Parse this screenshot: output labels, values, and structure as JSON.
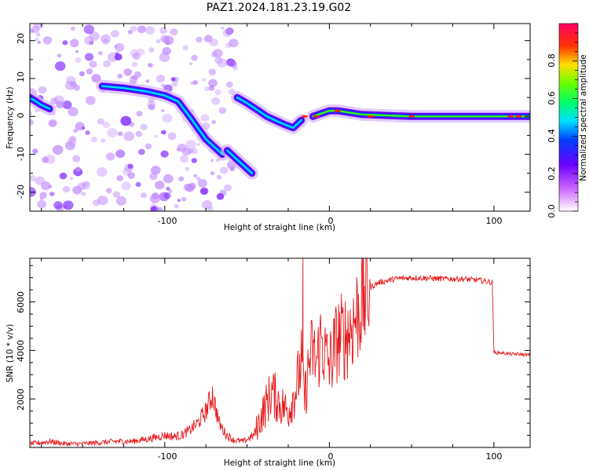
{
  "title": "PAZ1.2024.181.23.19.G02",
  "chart_data": [
    {
      "type": "heatmap",
      "xlabel": "Height of straight line (km)",
      "ylabel": "Frequency (Hz)",
      "xlim": [
        -182,
        122
      ],
      "ylim": [
        -25,
        24.5
      ],
      "x_tick_labels": [
        "-100",
        "0",
        "100"
      ],
      "y_tick_labels": [
        "20",
        "10",
        "0",
        "-10",
        "-20"
      ],
      "colorbar": {
        "label": "Normalized spectral amplitude",
        "range": [
          0,
          1
        ],
        "tick_labels": [
          "0.0",
          "0.2",
          "0.4",
          "0.6",
          "0.8"
        ]
      },
      "ridges": [
        {
          "x": [
            -182,
            -175,
            -170
          ],
          "y": [
            5,
            3,
            2
          ]
        },
        {
          "x": [
            -138,
            -125,
            -110,
            -100,
            -92,
            -85,
            -80,
            -75,
            -70,
            -65
          ],
          "y": [
            8,
            7.5,
            6.5,
            5.5,
            4,
            0,
            -3,
            -6,
            -8,
            -10
          ]
        },
        {
          "x": [
            -62,
            -57,
            -52,
            -47
          ],
          "y": [
            -9,
            -11,
            -13,
            -15
          ]
        },
        {
          "x": [
            -56,
            -50,
            -43,
            -38,
            -33,
            -28,
            -22,
            -17
          ],
          "y": [
            5,
            3.5,
            1.5,
            0,
            -1,
            -2,
            -3,
            -1
          ]
        },
        {
          "x": [
            -10,
            0,
            5,
            20,
            50,
            80,
            100,
            122
          ],
          "y": [
            0,
            1.5,
            1.5,
            0.5,
            0,
            0,
            0,
            0
          ]
        }
      ]
    },
    {
      "type": "line",
      "xlabel": "Height of straight line (km)",
      "ylabel": "SNR (10 * v/v)",
      "xlim": [
        -182,
        122
      ],
      "ylim": [
        0,
        7800
      ],
      "x_tick_labels": [
        "-100",
        "0",
        "100"
      ],
      "y_tick_labels": [
        "2000",
        "4000",
        "6000"
      ],
      "series": [
        {
          "color": "#e8191c",
          "x": [
            -182,
            -175,
            -170,
            -160,
            -150,
            -140,
            -130,
            -120,
            -110,
            -100,
            -95,
            -90,
            -85,
            -80,
            -75,
            -71,
            -67,
            -63,
            -58,
            -52,
            -46,
            -40,
            -35,
            -30,
            -25,
            -20,
            -17,
            -15,
            -12,
            -10,
            -8,
            -5,
            -3,
            0,
            5,
            10,
            15,
            20,
            25,
            30,
            40,
            50,
            60,
            70,
            80,
            90,
            95,
            99,
            100,
            100.5,
            105,
            110,
            115,
            122
          ],
          "values": [
            150,
            200,
            250,
            150,
            150,
            200,
            250,
            250,
            350,
            500,
            450,
            500,
            700,
            1000,
            1500,
            2200,
            1000,
            550,
            300,
            250,
            500,
            1500,
            2300,
            1800,
            1500,
            2500,
            3500,
            2000,
            3600,
            4000,
            3400,
            4500,
            3900,
            3400,
            4500,
            4600,
            5200,
            6100,
            6600,
            6800,
            6950,
            7000,
            6980,
            6950,
            6950,
            6900,
            6850,
            6800,
            3950,
            3900,
            3900,
            3850,
            3850,
            3800
          ]
        }
      ]
    }
  ]
}
